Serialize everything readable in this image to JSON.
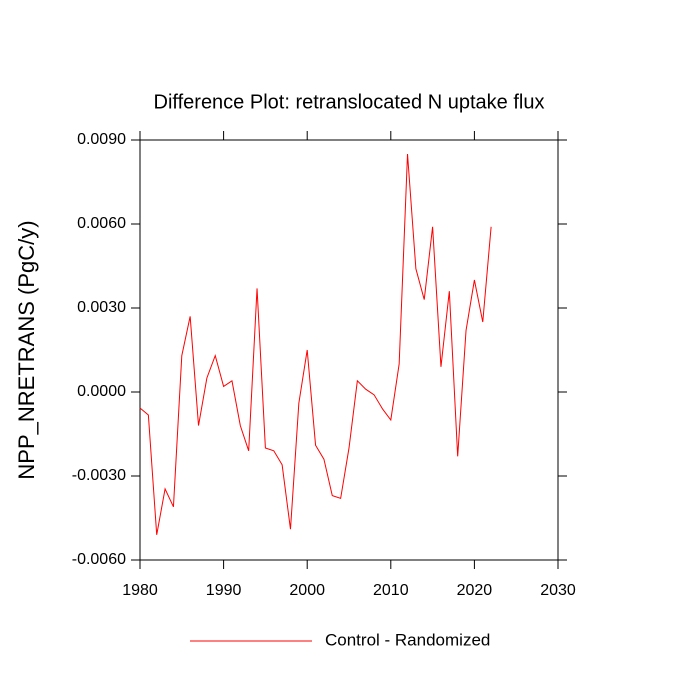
{
  "chart_data": {
    "type": "line",
    "title": "Difference Plot: retranslocated N uptake flux",
    "y_label": "NPP_NRETRANS  (PgC/y)",
    "x": [
      1980,
      1981,
      1982,
      1983,
      1984,
      1985,
      1986,
      1987,
      1988,
      1989,
      1990,
      1991,
      1992,
      1993,
      1994,
      1995,
      1996,
      1997,
      1998,
      1999,
      2000,
      2001,
      2002,
      2003,
      2004,
      2005,
      2006,
      2007,
      2008,
      2009,
      2010,
      2011,
      2012,
      2013,
      2014,
      2015,
      2016,
      2017,
      2018,
      2019,
      2020,
      2021,
      2022
    ],
    "series": [
      {
        "name": "Control - Randomized",
        "color": "#ff0000",
        "values": [
          -0.00057,
          -0.00082,
          -0.0051,
          -0.00346,
          -0.0041,
          0.0013,
          0.0027,
          -0.0012,
          0.0005,
          0.0013,
          0.0002,
          0.0004,
          -0.0012,
          -0.0021,
          0.0037,
          -0.002,
          -0.0021,
          -0.0026,
          -0.0049,
          -0.0004,
          0.0015,
          -0.0019,
          -0.0024,
          -0.0037,
          -0.0038,
          -0.002,
          0.0004,
          0.0001,
          -0.0001,
          -0.0006,
          -0.001,
          0.001,
          0.0085,
          0.0044,
          0.0033,
          0.0059,
          0.0009,
          0.0036,
          -0.0023,
          0.0022,
          0.004,
          0.0025,
          0.0059
        ]
      }
    ],
    "xlim": [
      1980,
      2030
    ],
    "xticks": [
      1980,
      1990,
      2000,
      2010,
      2020,
      2030
    ],
    "ylim": [
      -0.006,
      0.009
    ],
    "yticks": [
      {
        "value": -0.006,
        "label": "-0.0060"
      },
      {
        "value": -0.003,
        "label": "-0.0030"
      },
      {
        "value": 0,
        "label": "0.0000"
      },
      {
        "value": 0.003,
        "label": "0.0030"
      },
      {
        "value": 0.006,
        "label": "0.0060"
      },
      {
        "value": 0.009,
        "label": "0.0090"
      }
    ],
    "grid": false
  }
}
